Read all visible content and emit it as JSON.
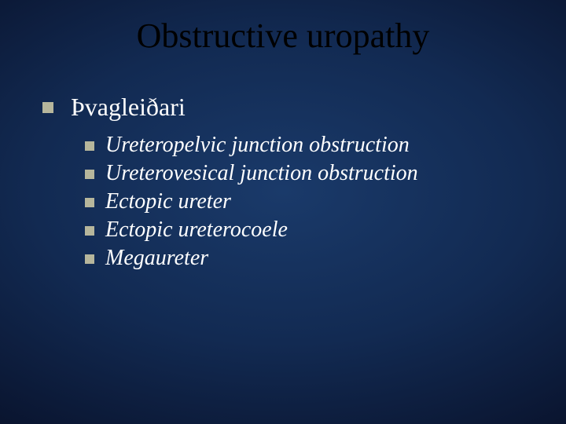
{
  "slide": {
    "title": "Obstructive uropathy",
    "background": {
      "gradient_center": "#1a3a6a",
      "gradient_mid": "#122a52",
      "gradient_outer": "#0a1530",
      "gradient_edge": "#050a1a"
    },
    "title_style": {
      "color": "#000000",
      "fontsize": 44,
      "font_family": "Times New Roman"
    },
    "bullet_color": "#b6b69c",
    "text_color": "#ffffff",
    "level1": {
      "text": "Þvagleiðari",
      "fontsize": 32
    },
    "level2_fontsize": 28,
    "level2_style": "italic",
    "subitems": [
      "Ureteropelvic junction obstruction",
      "Ureterovesical junction obstruction",
      "Ectopic ureter",
      "Ectopic ureterocoele",
      "Megaureter"
    ]
  }
}
